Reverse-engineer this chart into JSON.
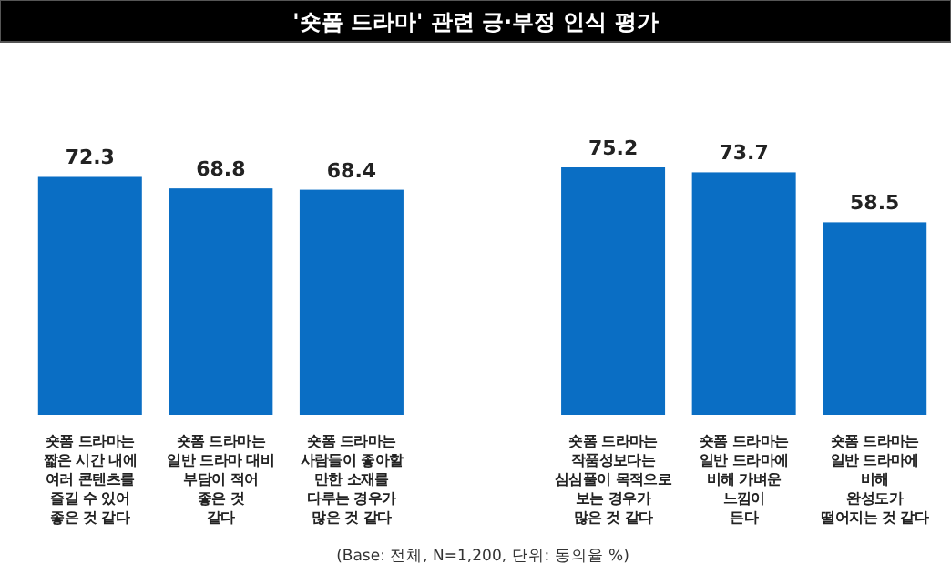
{
  "chart_data": {
    "type": "bar",
    "title": "'숏폼 드라마' 관련 긍·부정 인식 평가",
    "categories": [
      "숏폼 드라마는\n짧은 시간 내에\n여러 콘텐츠를\n즐길 수 있어\n좋은 것 같다",
      "숏폼 드라마는\n일반 드라마 대비\n부담이 적어\n좋은 것\n같다",
      "숏폼 드라마는\n사람들이 좋아할\n만한 소재를\n다루는 경우가\n많은 것 같다",
      null,
      "숏폼 드라마는\n작품성보다는\n심심풀이 목적으로\n보는 경우가\n많은 것 같다",
      "숏폼 드라마는\n일반 드라마에\n비해 가벼운\n느낌이\n든다",
      "숏폼 드라마는\n일반 드라마에\n비해\n완성도가\n떨어지는 것 같다"
    ],
    "values": [
      72.3,
      68.8,
      68.4,
      null,
      75.2,
      73.7,
      58.5
    ],
    "color": "#0a6ec4",
    "data_labels": true,
    "relative": false,
    "annotations": [
      "(Base: 전체, N=1,200, 단위: 동의율 %)"
    ]
  }
}
